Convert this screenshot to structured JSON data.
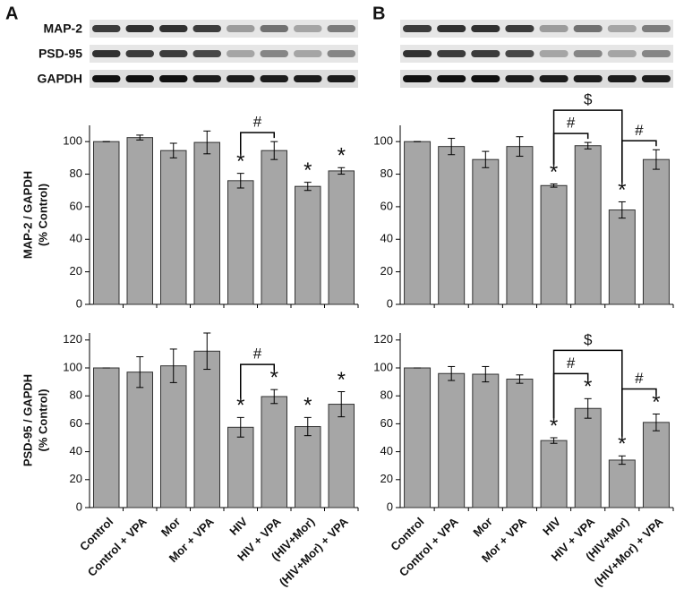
{
  "panels": [
    "A",
    "B"
  ],
  "blots": {
    "labels": [
      "MAP-2",
      "PSD-95",
      "GAPDH"
    ]
  },
  "chart_data": [
    {
      "type": "bar",
      "panel": "A",
      "ylabel": [
        "MAP-2 / GAPDH",
        "(% Control)"
      ],
      "color": "#a6a6a6",
      "categories": [
        null,
        null,
        null,
        null,
        null,
        null,
        null,
        null
      ],
      "values": [
        100,
        102.5,
        94.5,
        99.5,
        76,
        94.5,
        72.5,
        82
      ],
      "errors": [
        0,
        1.5,
        4.5,
        7,
        4.5,
        5.5,
        2.5,
        2
      ],
      "significance": [
        null,
        null,
        null,
        null,
        "*",
        null,
        "*",
        "*"
      ],
      "brackets": [
        {
          "label": "#",
          "bars": [
            4,
            5
          ]
        }
      ],
      "ylim": [
        0,
        110
      ],
      "yticks": [
        0,
        20,
        40,
        60,
        80,
        100
      ]
    },
    {
      "type": "bar",
      "panel": "A",
      "ylabel": [
        "PSD-95 / GAPDH",
        "(% Control)"
      ],
      "color": "#a6a6a6",
      "categories": [
        "Control",
        "Control + VPA",
        "Mor",
        "Mor + VPA",
        "HIV",
        "HIV + VPA",
        "(HIV+Mor)",
        "(HIV+Mor) + VPA"
      ],
      "values": [
        100,
        97,
        101.5,
        112,
        57.5,
        79.5,
        58,
        74
      ],
      "errors": [
        0,
        11,
        12,
        13,
        7,
        5,
        6.5,
        9
      ],
      "significance": [
        null,
        null,
        null,
        null,
        "*",
        "*",
        "*",
        "*"
      ],
      "brackets": [
        {
          "label": "#",
          "bars": [
            4,
            5
          ]
        }
      ],
      "ylim": [
        0,
        125
      ],
      "yticks": [
        0,
        20,
        40,
        60,
        80,
        100,
        120
      ]
    },
    {
      "type": "bar",
      "panel": "B",
      "color": "#a6a6a6",
      "categories": [
        null,
        null,
        null,
        null,
        null,
        null,
        null,
        null
      ],
      "values": [
        100,
        97,
        89,
        97,
        73,
        97.5,
        58,
        89
      ],
      "errors": [
        0,
        5,
        5,
        6,
        1,
        2,
        5,
        6
      ],
      "significance": [
        null,
        null,
        null,
        null,
        "*",
        null,
        "*",
        null
      ],
      "brackets": [
        {
          "label": "#",
          "bars": [
            4,
            5
          ]
        },
        {
          "label": "#",
          "bars": [
            6,
            7
          ]
        },
        {
          "label": "$",
          "bars": [
            4,
            6
          ]
        }
      ],
      "ylim": [
        0,
        110
      ],
      "yticks": [
        0,
        20,
        40,
        60,
        80,
        100
      ]
    },
    {
      "type": "bar",
      "panel": "B",
      "color": "#a6a6a6",
      "categories": [
        "Control",
        "Control + VPA",
        "Mor",
        "Mor + VPA",
        "HIV",
        "HIV + VPA",
        "(HIV+Mor)",
        "(HIV+Mor) + VPA"
      ],
      "values": [
        100,
        96,
        95.5,
        92,
        48,
        71,
        34,
        61
      ],
      "errors": [
        0,
        5,
        5.5,
        3,
        2,
        7,
        3,
        6
      ],
      "significance": [
        null,
        null,
        null,
        null,
        "*",
        "*",
        "*",
        "*"
      ],
      "brackets": [
        {
          "label": "#",
          "bars": [
            4,
            5
          ]
        },
        {
          "label": "#",
          "bars": [
            6,
            7
          ]
        },
        {
          "label": "$",
          "bars": [
            4,
            6
          ]
        }
      ],
      "ylim": [
        0,
        125
      ],
      "yticks": [
        0,
        20,
        40,
        60,
        80,
        100,
        120
      ]
    }
  ]
}
